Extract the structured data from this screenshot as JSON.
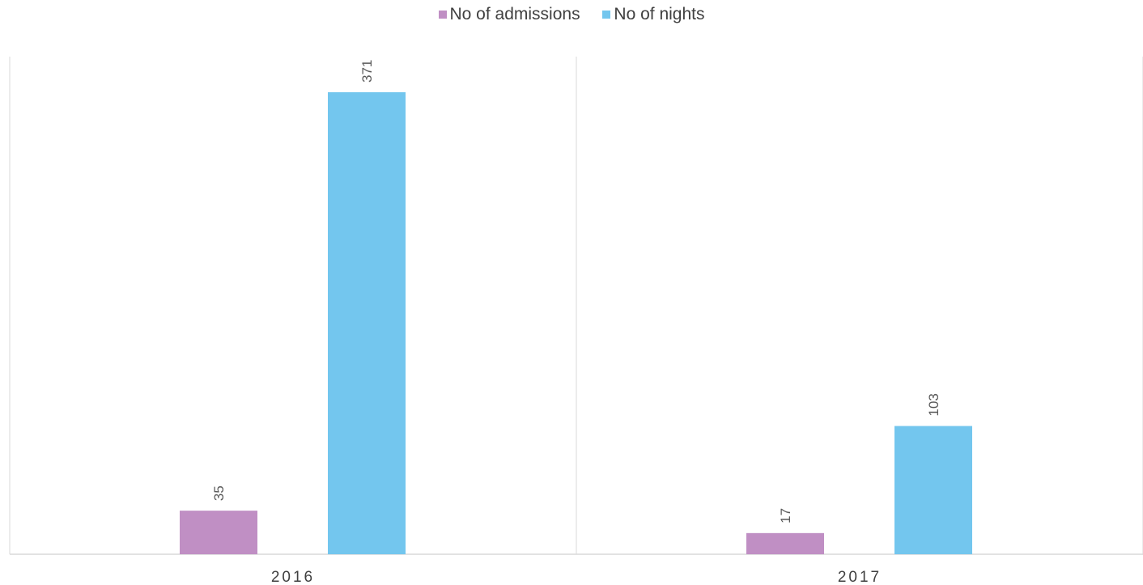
{
  "chart_data": {
    "type": "bar",
    "categories": [
      "2016",
      "2017"
    ],
    "series": [
      {
        "name": "No of admissions",
        "color": "#c08fc4",
        "values": [
          35,
          17
        ]
      },
      {
        "name": "No of nights",
        "color": "#73c6ee",
        "values": [
          371,
          103
        ]
      }
    ],
    "ylim": [
      0,
      400
    ],
    "legend": "top-center",
    "grid": false
  }
}
